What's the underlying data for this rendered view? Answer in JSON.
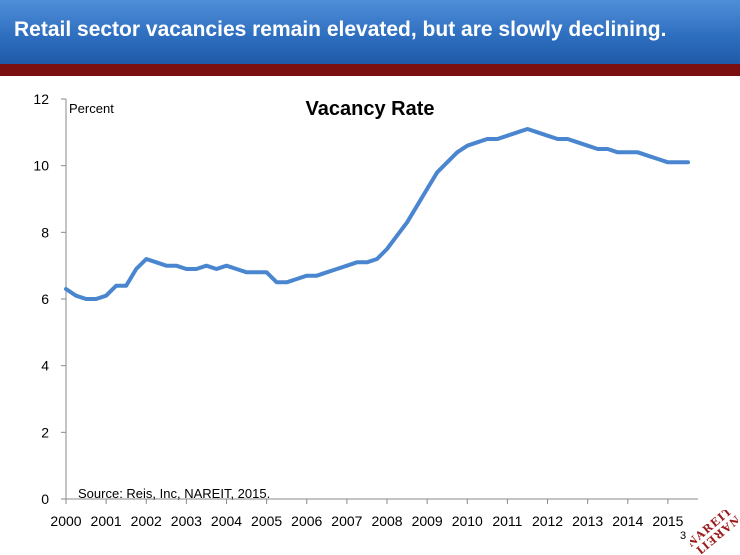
{
  "slide": {
    "title": "Retail sector vacancies remain elevated, but are slowly declining.",
    "source": "Source: Reis, Inc, NAREIT, 2015.",
    "page_number": "3",
    "logo_text": "NAREIT",
    "colors": {
      "header": "#2f6fc0",
      "band": "#7b1010",
      "line": "#4a86d0",
      "logo": "#9b1c1c"
    }
  },
  "chart_data": {
    "type": "line",
    "title": "Vacancy Rate",
    "ylabel": "Percent",
    "xlabel": "",
    "ylim": [
      0,
      12
    ],
    "yticks": [
      0,
      2,
      4,
      6,
      8,
      10,
      12
    ],
    "xlim": [
      2000,
      2015.75
    ],
    "xticks": [
      "2000",
      "2001",
      "2002",
      "2003",
      "2004",
      "2005",
      "2006",
      "2007",
      "2008",
      "2009",
      "2010",
      "2011",
      "2012",
      "2013",
      "2014",
      "2015"
    ],
    "grid": false,
    "series": [
      {
        "x": [
          2000.0,
          2000.25,
          2000.5,
          2000.75,
          2001.0,
          2001.25,
          2001.5,
          2001.75,
          2002.0,
          2002.25,
          2002.5,
          2002.75,
          2003.0,
          2003.25,
          2003.5,
          2003.75,
          2004.0,
          2004.25,
          2004.5,
          2004.75,
          2005.0,
          2005.25,
          2005.5,
          2005.75,
          2006.0,
          2006.25,
          2006.5,
          2006.75,
          2007.0,
          2007.25,
          2007.5,
          2007.75,
          2008.0,
          2008.25,
          2008.5,
          2008.75,
          2009.0,
          2009.25,
          2009.5,
          2009.75,
          2010.0,
          2010.25,
          2010.5,
          2010.75,
          2011.0,
          2011.25,
          2011.5,
          2011.75,
          2012.0,
          2012.25,
          2012.5,
          2012.75,
          2013.0,
          2013.25,
          2013.5,
          2013.75,
          2014.0,
          2014.25,
          2014.5,
          2014.75,
          2015.0,
          2015.25,
          2015.5
        ],
        "y": [
          6.3,
          6.1,
          6.0,
          6.0,
          6.1,
          6.4,
          6.4,
          6.9,
          7.2,
          7.1,
          7.0,
          7.0,
          6.9,
          6.9,
          7.0,
          6.9,
          7.0,
          6.9,
          6.8,
          6.8,
          6.8,
          6.5,
          6.5,
          6.6,
          6.7,
          6.7,
          6.8,
          6.9,
          7.0,
          7.1,
          7.1,
          7.2,
          7.5,
          7.9,
          8.3,
          8.8,
          9.3,
          9.8,
          10.1,
          10.4,
          10.6,
          10.7,
          10.8,
          10.8,
          10.9,
          11.0,
          11.1,
          11.0,
          10.9,
          10.8,
          10.8,
          10.7,
          10.6,
          10.5,
          10.5,
          10.4,
          10.4,
          10.4,
          10.3,
          10.2,
          10.1,
          10.1,
          10.1
        ]
      }
    ]
  }
}
